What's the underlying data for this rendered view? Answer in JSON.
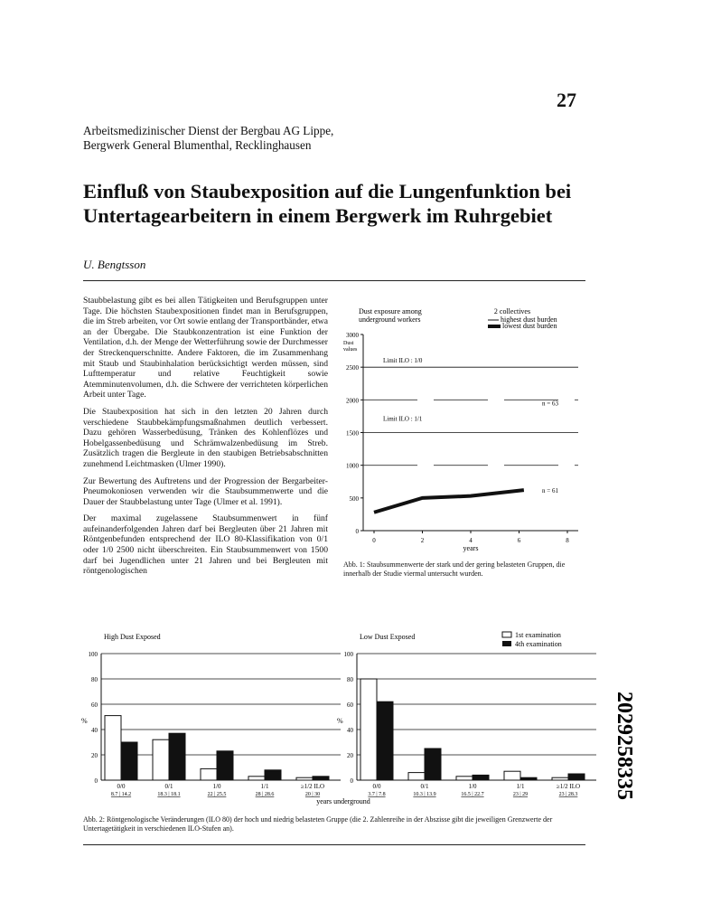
{
  "page_number": "27",
  "institution": [
    "Arbeitsmedizinischer Dienst der Bergbau AG Lippe,",
    "Bergwerk General Blumenthal, Recklinghausen"
  ],
  "title": [
    "Einfluß von Staubexposition auf die Lungenfunktion bei",
    "Untertagearbeitern in einem Bergwerk im Ruhrgebiet"
  ],
  "author": "U. Bengtsson",
  "paragraphs": [
    "Staubbelastung gibt es bei allen Tätigkeiten und Berufsgruppen unter Tage. Die höchsten Staubexpositionen findet man in Berufsgruppen, die im Streb arbeiten, vor Ort sowie entlang der Transportbänder, etwa an der Übergabe. Die Staubkonzentration ist eine Funktion der Ventilation, d.h. der Menge der Wetterführung sowie der Durchmesser der Streckenquerschnitte. Andere Faktoren, die im Zusammenhang mit Staub und Staubinhalation berücksichtigt werden müssen, sind Lufttemperatur und relative Feuchtigkeit sowie Atemminutenvolumen, d.h. die Schwere der verrichteten körperlichen Arbeit unter Tage.",
    "Die Staubexposition hat sich in den letzten 20 Jahren durch verschiedene Staubbekämpfungsmaßnahmen deutlich verbessert. Dazu gehören Wasserbedüsung, Tränken des Kohlenflözes und Hobelgassenbedüsung und Schrämwalzenbedüsung im Streb. Zusätzlich tragen die Bergleute in den staubigen Betriebsabschnitten zunehmend Leichtmasken (Ulmer 1990).",
    "Zur Bewertung des Auftretens und der Progression der Bergarbeiter-Pneumokoniosen verwenden wir die Staubsummenwerte und die Dauer der Staubbelastung unter Tage (Ulmer et al. 1991).",
    "Der maximal zugelassene Staubsummenwert in fünf aufeinanderfolgenden Jahren darf bei Bergleuten über 21 Jahren mit Röntgenbefunden entsprechend der ILO 80-Klassifikation von 0/1 oder 1/0 2500 nicht überschreiten. Ein Staubsummenwert von 1500 darf bei Jugendlichen unter 21 Jahren und bei Bergleuten mit röntgenologischen"
  ],
  "chart_data": [
    {
      "type": "line",
      "title": "Dust exposure among underground workers",
      "ylabel": "Dust values",
      "xlabel": "years",
      "xlim": [
        0,
        8
      ],
      "ylim": [
        0,
        3000
      ],
      "xticks": [
        0,
        2,
        4,
        6,
        8
      ],
      "yticks": [
        0,
        500,
        1000,
        1500,
        2000,
        2500,
        3000
      ],
      "limit_lines": [
        {
          "label": "Limit ILO : 1/0",
          "value": 2500
        },
        {
          "label": "Limit ILO : 1/1",
          "value": 1500
        }
      ],
      "legend_title": "2 collectives",
      "legend": [
        "highest dust burden",
        "lowest dust burden"
      ],
      "series": [
        {
          "name": "highest dust burden",
          "n_label": "n = 63",
          "x": [
            0,
            2,
            4,
            6.2
          ],
          "y": [
            2000,
            2000,
            2000,
            2000
          ],
          "style": "thin"
        },
        {
          "name": "lowest dust burden",
          "n_label": "n = 61",
          "x": [
            0,
            2,
            4,
            6.2
          ],
          "y": [
            280,
            500,
            530,
            620
          ],
          "style": "thick"
        }
      ],
      "gridlines_dashed": [
        2000,
        1000
      ],
      "caption": "Abb. 1: Staubsummenwerte der stark und der gering belasteten Gruppen, die innerhalb der Studie viermal untersucht wurden."
    },
    {
      "type": "bar",
      "title": "High Dust Exposed",
      "ylabel": "%",
      "ylim": [
        0,
        100
      ],
      "yticks": [
        0,
        20,
        40,
        60,
        80,
        100
      ],
      "categories": [
        "0/0",
        "0/1",
        "1/0",
        "1/1",
        "≥1/2 ILO"
      ],
      "subcategories": [
        "8.7 | 14.2",
        "18.3 | 18.1",
        "22 | 25.5",
        "28 | 28.6",
        "20 | 30"
      ],
      "series": [
        {
          "name": "1st examination",
          "values": [
            51,
            32,
            9,
            3,
            2
          ]
        },
        {
          "name": "4th examination",
          "values": [
            30,
            37,
            23,
            8,
            3
          ]
        }
      ]
    },
    {
      "type": "bar",
      "title": "Low Dust Exposed",
      "ylabel": "%",
      "ylim": [
        0,
        100
      ],
      "yticks": [
        0,
        20,
        40,
        60,
        80,
        100
      ],
      "categories": [
        "0/0",
        "0/1",
        "1/0",
        "1/1",
        "≥1/2 ILO"
      ],
      "subcategories": [
        "3.7 | 7.8",
        "10.3 | 13.9",
        "16.5 | 22.7",
        "23 | 29",
        "23 | 28.3"
      ],
      "xlabel": "years underground",
      "legend": [
        "1st examination",
        "4th examination"
      ],
      "series": [
        {
          "name": "1st examination",
          "values": [
            80,
            6,
            3,
            7,
            2
          ]
        },
        {
          "name": "4th examination",
          "values": [
            62,
            25,
            4,
            2,
            5
          ]
        }
      ]
    }
  ],
  "figure2_caption": "Abb. 2: Röntgenologische Veränderungen (ILO 80) der hoch und niedrig belasteten Gruppe (die 2. Zahlenreihe in der Abszisse gibt die jeweiligen Grenzwerte der Untertagetätigkeit in verschiedenen ILO-Stufen an).",
  "side_code": "2029258335"
}
